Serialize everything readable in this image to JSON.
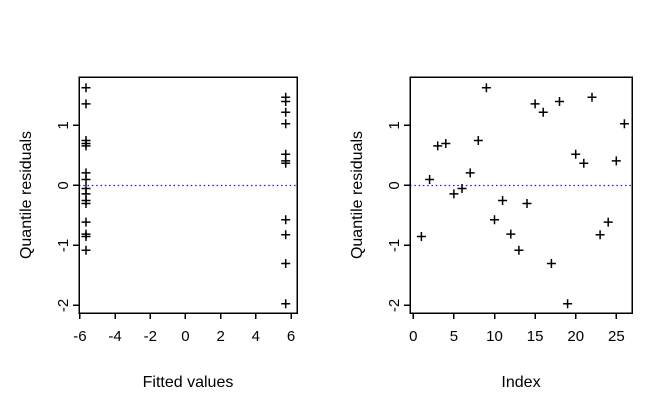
{
  "figure": {
    "background": "#ffffff",
    "axis_color": "#000000",
    "marker_color": "#000000",
    "ref_line_color": "#1a1ae6"
  },
  "chart_data": [
    {
      "type": "scatter",
      "name": "residuals-vs-fitted",
      "marker": "+",
      "title": "",
      "xlabel": "Fitted values",
      "ylabel": "Quantile residuals",
      "xticks": [
        -6,
        -4,
        -2,
        0,
        2,
        4,
        6
      ],
      "yticks": [
        -2,
        -1,
        0,
        1
      ],
      "xlim": [
        -6.05,
        6.34
      ],
      "ylim": [
        -2.125,
        1.808
      ],
      "grid": false,
      "legend": null,
      "ref_line": {
        "y": 0,
        "style": "dotted"
      },
      "x": [
        -5.65,
        -5.65,
        -5.65,
        -5.65,
        -5.65,
        -5.65,
        -5.65,
        -5.65,
        -5.65,
        5.7,
        -5.65,
        -5.65,
        -5.65,
        -5.65,
        -5.65,
        5.7,
        5.7,
        5.7,
        5.7,
        5.7,
        5.7,
        5.7,
        5.7,
        -5.65,
        5.7,
        5.7
      ],
      "y": [
        -0.85,
        0.1,
        0.66,
        0.7,
        -0.14,
        -0.05,
        0.21,
        0.75,
        1.63,
        -0.57,
        -0.25,
        -0.81,
        -1.08,
        -0.3,
        1.36,
        1.22,
        -1.3,
        1.4,
        -1.97,
        0.52,
        0.37,
        1.47,
        -0.82,
        -0.61,
        0.41,
        1.03
      ]
    },
    {
      "type": "scatter",
      "name": "residuals-vs-index",
      "marker": "+",
      "title": "",
      "xlabel": "Index",
      "ylabel": "Quantile residuals",
      "xticks": [
        0,
        5,
        10,
        15,
        20,
        25
      ],
      "yticks": [
        -2,
        -1,
        0,
        1
      ],
      "xlim": [
        -0.41,
        26.93
      ],
      "ylim": [
        -2.125,
        1.808
      ],
      "grid": false,
      "legend": null,
      "ref_line": {
        "y": 0,
        "style": "dotted"
      },
      "x": [
        1,
        2,
        3,
        4,
        5,
        6,
        7,
        8,
        9,
        10,
        11,
        12,
        13,
        14,
        15,
        16,
        17,
        18,
        19,
        20,
        21,
        22,
        23,
        24,
        25,
        26
      ],
      "y": [
        -0.85,
        0.1,
        0.66,
        0.7,
        -0.14,
        -0.05,
        0.21,
        0.75,
        1.63,
        -0.57,
        -0.25,
        -0.81,
        -1.08,
        -0.3,
        1.36,
        1.22,
        -1.3,
        1.4,
        -1.97,
        0.52,
        0.37,
        1.47,
        -0.82,
        -0.61,
        0.41,
        1.03
      ]
    }
  ]
}
